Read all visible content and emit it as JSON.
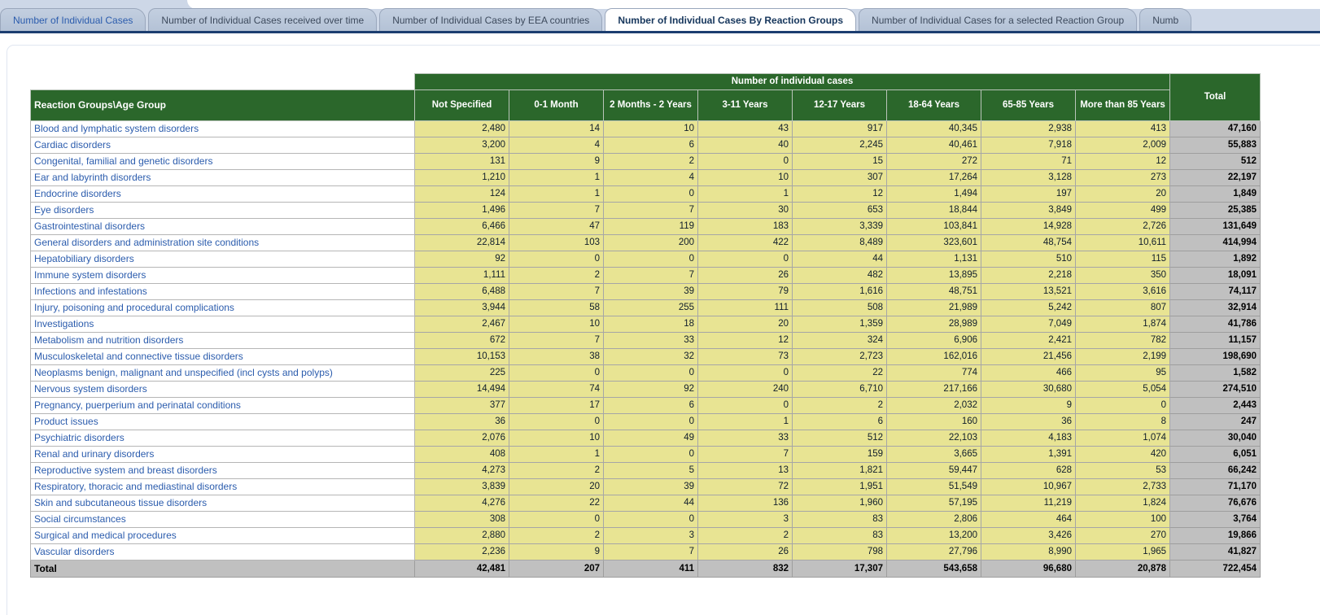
{
  "tabs": [
    {
      "label": "Number of Individual Cases",
      "variant": "link"
    },
    {
      "label": "Number of Individual Cases received over time",
      "variant": "normal"
    },
    {
      "label": "Number of Individual Cases by EEA countries",
      "variant": "normal"
    },
    {
      "label": "Number of Individual Cases By Reaction Groups",
      "variant": "active"
    },
    {
      "label": "Number of Individual Cases for a selected Reaction Group",
      "variant": "normal"
    },
    {
      "label": "Numb",
      "variant": "normal"
    }
  ],
  "table": {
    "spanning_header": "Number of individual cases",
    "corner_header": "Reaction Groups\\Age Group",
    "age_columns": [
      "Not Specified",
      "0-1 Month",
      "2 Months - 2 Years",
      "3-11 Years",
      "12-17 Years",
      "18-64 Years",
      "65-85 Years",
      "More than 85 Years"
    ],
    "total_column": "Total",
    "rows": [
      {
        "label": "Blood and lymphatic system disorders",
        "values": [
          "2,480",
          "14",
          "10",
          "43",
          "917",
          "40,345",
          "2,938",
          "413"
        ],
        "total": "47,160"
      },
      {
        "label": "Cardiac disorders",
        "values": [
          "3,200",
          "4",
          "6",
          "40",
          "2,245",
          "40,461",
          "7,918",
          "2,009"
        ],
        "total": "55,883"
      },
      {
        "label": "Congenital, familial and genetic disorders",
        "values": [
          "131",
          "9",
          "2",
          "0",
          "15",
          "272",
          "71",
          "12"
        ],
        "total": "512"
      },
      {
        "label": "Ear and labyrinth disorders",
        "values": [
          "1,210",
          "1",
          "4",
          "10",
          "307",
          "17,264",
          "3,128",
          "273"
        ],
        "total": "22,197"
      },
      {
        "label": "Endocrine disorders",
        "values": [
          "124",
          "1",
          "0",
          "1",
          "12",
          "1,494",
          "197",
          "20"
        ],
        "total": "1,849"
      },
      {
        "label": "Eye disorders",
        "values": [
          "1,496",
          "7",
          "7",
          "30",
          "653",
          "18,844",
          "3,849",
          "499"
        ],
        "total": "25,385"
      },
      {
        "label": "Gastrointestinal disorders",
        "values": [
          "6,466",
          "47",
          "119",
          "183",
          "3,339",
          "103,841",
          "14,928",
          "2,726"
        ],
        "total": "131,649"
      },
      {
        "label": "General disorders and administration site conditions",
        "values": [
          "22,814",
          "103",
          "200",
          "422",
          "8,489",
          "323,601",
          "48,754",
          "10,611"
        ],
        "total": "414,994"
      },
      {
        "label": "Hepatobiliary disorders",
        "values": [
          "92",
          "0",
          "0",
          "0",
          "44",
          "1,131",
          "510",
          "115"
        ],
        "total": "1,892"
      },
      {
        "label": "Immune system disorders",
        "values": [
          "1,111",
          "2",
          "7",
          "26",
          "482",
          "13,895",
          "2,218",
          "350"
        ],
        "total": "18,091"
      },
      {
        "label": "Infections and infestations",
        "values": [
          "6,488",
          "7",
          "39",
          "79",
          "1,616",
          "48,751",
          "13,521",
          "3,616"
        ],
        "total": "74,117"
      },
      {
        "label": "Injury, poisoning and procedural complications",
        "values": [
          "3,944",
          "58",
          "255",
          "111",
          "508",
          "21,989",
          "5,242",
          "807"
        ],
        "total": "32,914"
      },
      {
        "label": "Investigations",
        "values": [
          "2,467",
          "10",
          "18",
          "20",
          "1,359",
          "28,989",
          "7,049",
          "1,874"
        ],
        "total": "41,786"
      },
      {
        "label": "Metabolism and nutrition disorders",
        "values": [
          "672",
          "7",
          "33",
          "12",
          "324",
          "6,906",
          "2,421",
          "782"
        ],
        "total": "11,157"
      },
      {
        "label": "Musculoskeletal and connective tissue disorders",
        "values": [
          "10,153",
          "38",
          "32",
          "73",
          "2,723",
          "162,016",
          "21,456",
          "2,199"
        ],
        "total": "198,690"
      },
      {
        "label": "Neoplasms benign, malignant and unspecified (incl cysts and polyps)",
        "values": [
          "225",
          "0",
          "0",
          "0",
          "22",
          "774",
          "466",
          "95"
        ],
        "total": "1,582"
      },
      {
        "label": "Nervous system disorders",
        "values": [
          "14,494",
          "74",
          "92",
          "240",
          "6,710",
          "217,166",
          "30,680",
          "5,054"
        ],
        "total": "274,510"
      },
      {
        "label": "Pregnancy, puerperium and perinatal conditions",
        "values": [
          "377",
          "17",
          "6",
          "0",
          "2",
          "2,032",
          "9",
          "0"
        ],
        "total": "2,443"
      },
      {
        "label": "Product issues",
        "values": [
          "36",
          "0",
          "0",
          "1",
          "6",
          "160",
          "36",
          "8"
        ],
        "total": "247"
      },
      {
        "label": "Psychiatric disorders",
        "values": [
          "2,076",
          "10",
          "49",
          "33",
          "512",
          "22,103",
          "4,183",
          "1,074"
        ],
        "total": "30,040"
      },
      {
        "label": "Renal and urinary disorders",
        "values": [
          "408",
          "1",
          "0",
          "7",
          "159",
          "3,665",
          "1,391",
          "420"
        ],
        "total": "6,051"
      },
      {
        "label": "Reproductive system and breast disorders",
        "values": [
          "4,273",
          "2",
          "5",
          "13",
          "1,821",
          "59,447",
          "628",
          "53"
        ],
        "total": "66,242"
      },
      {
        "label": "Respiratory, thoracic and mediastinal disorders",
        "values": [
          "3,839",
          "20",
          "39",
          "72",
          "1,951",
          "51,549",
          "10,967",
          "2,733"
        ],
        "total": "71,170"
      },
      {
        "label": "Skin and subcutaneous tissue disorders",
        "values": [
          "4,276",
          "22",
          "44",
          "136",
          "1,960",
          "57,195",
          "11,219",
          "1,824"
        ],
        "total": "76,676"
      },
      {
        "label": "Social circumstances",
        "values": [
          "308",
          "0",
          "0",
          "3",
          "83",
          "2,806",
          "464",
          "100"
        ],
        "total": "3,764"
      },
      {
        "label": "Surgical and medical procedures",
        "values": [
          "2,880",
          "2",
          "3",
          "2",
          "83",
          "13,200",
          "3,426",
          "270"
        ],
        "total": "19,866"
      },
      {
        "label": "Vascular disorders",
        "values": [
          "2,236",
          "9",
          "7",
          "26",
          "798",
          "27,796",
          "8,990",
          "1,965"
        ],
        "total": "41,827"
      }
    ],
    "total_row": {
      "label": "Total",
      "values": [
        "42,481",
        "207",
        "411",
        "832",
        "17,307",
        "543,658",
        "96,680",
        "20,878"
      ],
      "total": "722,454"
    }
  },
  "colors": {
    "header_green": "#2b672b",
    "cell_yellow": "#e8e493",
    "total_gray": "#c0c0c0",
    "link_blue": "#2b5cad",
    "divider_navy": "#1c3e70",
    "tab_bar": "#cdd7e7",
    "tab_fill": "#b7c4d7",
    "active_tab_text": "#16365c"
  }
}
